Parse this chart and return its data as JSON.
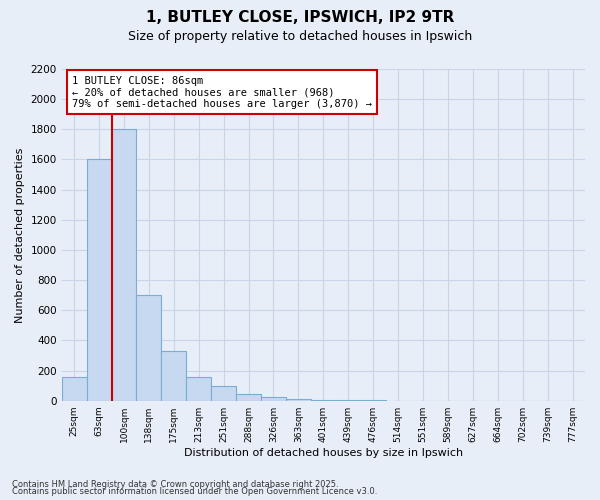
{
  "title_line1": "1, BUTLEY CLOSE, IPSWICH, IP2 9TR",
  "title_line2": "Size of property relative to detached houses in Ipswich",
  "xlabel": "Distribution of detached houses by size in Ipswich",
  "ylabel": "Number of detached properties",
  "categories": [
    "25sqm",
    "63sqm",
    "100sqm",
    "138sqm",
    "175sqm",
    "213sqm",
    "251sqm",
    "288sqm",
    "326sqm",
    "363sqm",
    "401sqm",
    "439sqm",
    "476sqm",
    "514sqm",
    "551sqm",
    "589sqm",
    "627sqm",
    "664sqm",
    "702sqm",
    "739sqm",
    "777sqm"
  ],
  "values": [
    155,
    1600,
    1800,
    700,
    330,
    155,
    95,
    45,
    25,
    12,
    6,
    4,
    2,
    1,
    1,
    0,
    0,
    0,
    0,
    0,
    0
  ],
  "bar_fill_color": "#c6d9f0",
  "bar_edge_color": "#7aadd4",
  "red_line_color": "#cc0000",
  "red_line_x": 1.5,
  "annotation_text_line1": "1 BUTLEY CLOSE: 86sqm",
  "annotation_text_line2": "← 20% of detached houses are smaller (968)",
  "annotation_text_line3": "79% of semi-detached houses are larger (3,870) →",
  "ylim": [
    0,
    2200
  ],
  "yticks": [
    0,
    200,
    400,
    600,
    800,
    1000,
    1200,
    1400,
    1600,
    1800,
    2000,
    2200
  ],
  "footer_line1": "Contains HM Land Registry data © Crown copyright and database right 2025.",
  "footer_line2": "Contains public sector information licensed under the Open Government Licence v3.0.",
  "bg_color": "#e8eef7",
  "plot_bg_color": "#dde6f3",
  "grid_color": "#c8d4e8",
  "fig_width": 6.0,
  "fig_height": 5.0
}
